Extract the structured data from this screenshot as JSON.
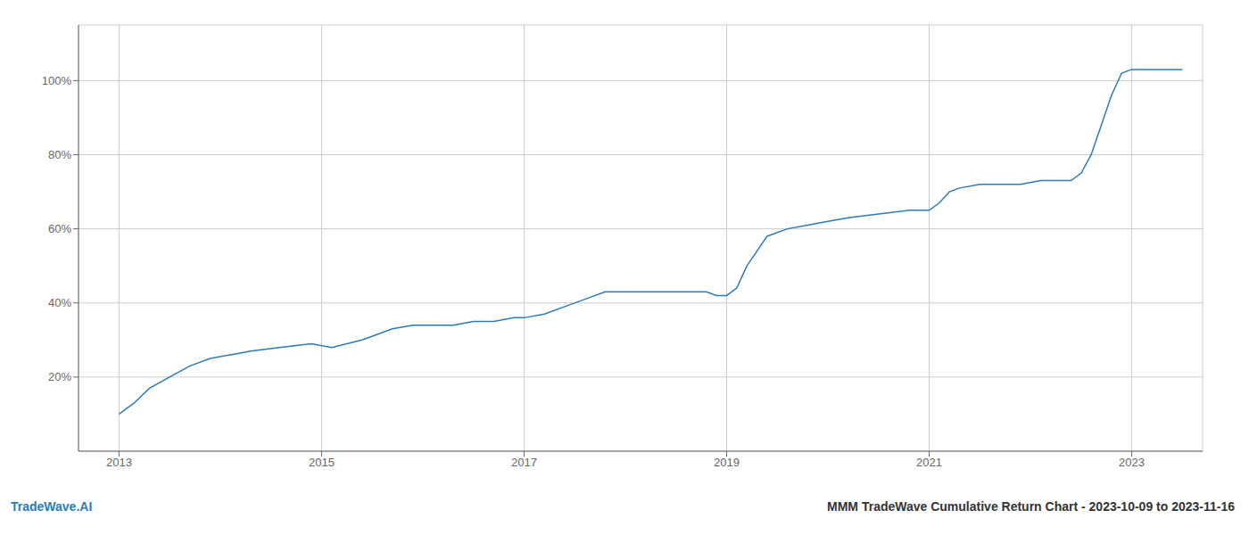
{
  "chart_data": {
    "type": "line",
    "x": [
      2013.0,
      2013.15,
      2013.3,
      2013.5,
      2013.7,
      2013.9,
      2014.1,
      2014.3,
      2014.6,
      2014.9,
      2015.1,
      2015.4,
      2015.7,
      2015.9,
      2016.1,
      2016.3,
      2016.5,
      2016.7,
      2016.9,
      2017.0,
      2017.2,
      2017.4,
      2017.6,
      2017.8,
      2018.0,
      2018.2,
      2018.4,
      2018.5,
      2018.6,
      2018.7,
      2018.8,
      2018.9,
      2019.0,
      2019.1,
      2019.2,
      2019.4,
      2019.6,
      2019.8,
      2020.0,
      2020.2,
      2020.5,
      2020.8,
      2020.9,
      2021.0,
      2021.1,
      2021.2,
      2021.3,
      2021.5,
      2021.7,
      2021.9,
      2022.1,
      2022.3,
      2022.4,
      2022.5,
      2022.6,
      2022.7,
      2022.8,
      2022.9,
      2023.0,
      2023.2,
      2023.5
    ],
    "values": [
      10,
      13,
      17,
      20,
      23,
      25,
      26,
      27,
      28,
      29,
      28,
      30,
      33,
      34,
      34,
      34,
      35,
      35,
      36,
      36,
      37,
      39,
      41,
      43,
      43,
      43,
      43,
      43,
      43,
      43,
      43,
      42,
      42,
      44,
      50,
      58,
      60,
      61,
      62,
      63,
      64,
      65,
      65,
      65,
      67,
      70,
      71,
      72,
      72,
      72,
      73,
      73,
      73,
      75,
      80,
      88,
      96,
      102,
      103,
      103,
      103
    ],
    "color": "#2b7bba",
    "xlim": [
      2012.6,
      2023.7
    ],
    "ylim": [
      0,
      115
    ],
    "xticks": [
      2013,
      2015,
      2017,
      2019,
      2021,
      2023
    ],
    "yticks": [
      {
        "value": 20,
        "label": "20%"
      },
      {
        "value": 40,
        "label": "40%"
      },
      {
        "value": 60,
        "label": "60%"
      },
      {
        "value": 80,
        "label": "80%"
      },
      {
        "value": 100,
        "label": "100%"
      }
    ],
    "grid": true,
    "annotations": [
      {
        "text": "TradeWave.AI",
        "color": "#2b7bba"
      },
      {
        "text": "MMM TradeWave Cumulative Return Chart - 2023-10-09 to 2023-11-16",
        "color": "#333333"
      }
    ]
  }
}
